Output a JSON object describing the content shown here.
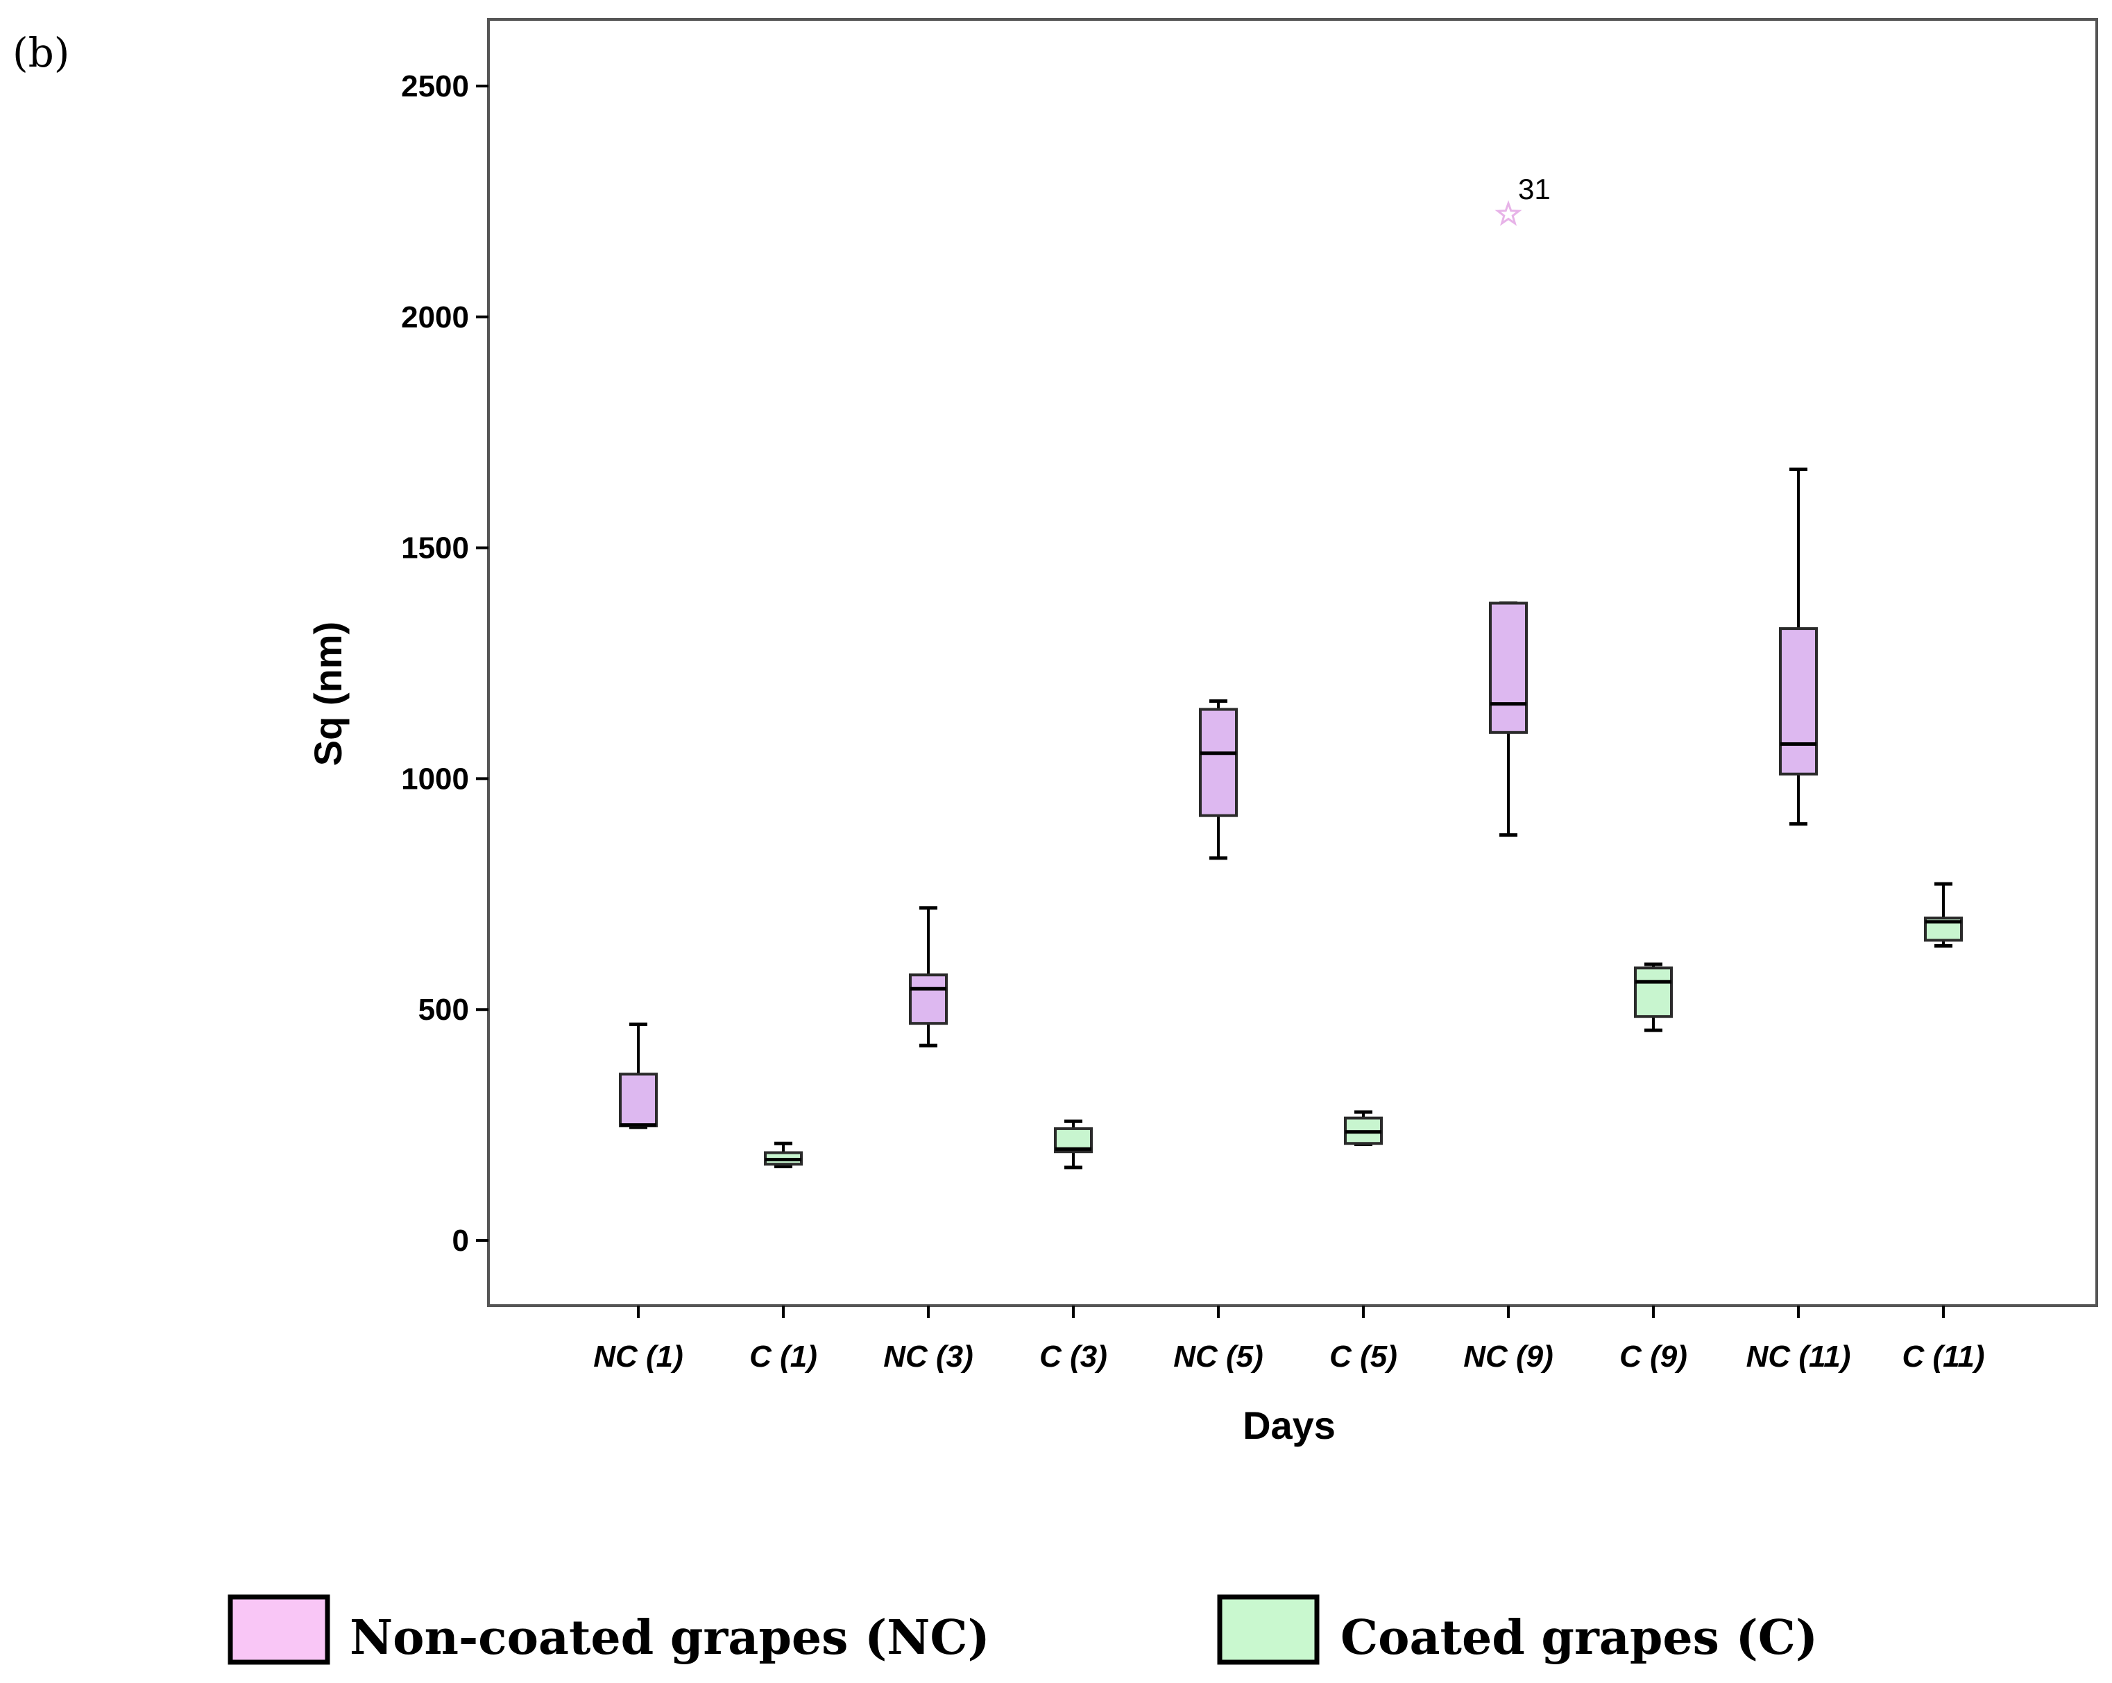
{
  "panel_label": "(b)",
  "chart_data": {
    "type": "box",
    "title": "",
    "xlabel": "Days",
    "ylabel": "Sq (nm)",
    "ylim": [
      -140,
      2640
    ],
    "yticks": [
      0,
      500,
      1000,
      1500,
      2000,
      2500
    ],
    "categories": [
      "NC (1)",
      "C (1)",
      "NC (3)",
      "C (3)",
      "NC (5)",
      "C (5)",
      "NC (9)",
      "C (9)",
      "NC (11)",
      "C (11)"
    ],
    "boxes": [
      {
        "category": "NC (1)",
        "group": "NC",
        "min": 245,
        "q1": 248,
        "median": 250,
        "q3": 360,
        "max": 468
      },
      {
        "category": "C (1)",
        "group": "C",
        "min": 160,
        "q1": 165,
        "median": 175,
        "q3": 190,
        "max": 210
      },
      {
        "category": "NC (3)",
        "group": "NC",
        "min": 422,
        "q1": 470,
        "median": 545,
        "q3": 575,
        "max": 720
      },
      {
        "category": "C (3)",
        "group": "C",
        "min": 158,
        "q1": 192,
        "median": 198,
        "q3": 242,
        "max": 258
      },
      {
        "category": "NC (5)",
        "group": "NC",
        "min": 828,
        "q1": 920,
        "median": 1055,
        "q3": 1150,
        "max": 1168
      },
      {
        "category": "C (5)",
        "group": "C",
        "min": 208,
        "q1": 210,
        "median": 235,
        "q3": 265,
        "max": 278
      },
      {
        "category": "NC (9)",
        "group": "NC",
        "min": 878,
        "q1": 1100,
        "median": 1162,
        "q3": 1380,
        "max": 1380
      },
      {
        "category": "C (9)",
        "group": "C",
        "min": 455,
        "q1": 485,
        "median": 560,
        "q3": 590,
        "max": 598
      },
      {
        "category": "NC (11)",
        "group": "NC",
        "min": 902,
        "q1": 1010,
        "median": 1075,
        "q3": 1325,
        "max": 1670
      },
      {
        "category": "C (11)",
        "group": "C",
        "min": 638,
        "q1": 650,
        "median": 690,
        "q3": 698,
        "max": 772
      }
    ],
    "outliers": [
      {
        "category": "NC (9)",
        "value": 2222,
        "label": "31",
        "marker": "star"
      }
    ],
    "legend": {
      "placement": "bottom",
      "items": [
        {
          "group": "NC",
          "label": "Non-coated grapes (NC)",
          "color": "#DDB8F0",
          "swatch_color": "#F9C6F6"
        },
        {
          "group": "C",
          "label": "Coated grapes (C)",
          "color": "#C8F5CF",
          "swatch_color": "#C9F8CF"
        }
      ]
    },
    "colors": {
      "NC": "#DDB8F0",
      "C": "#C8F5CF",
      "outlier": "#E7B3E8",
      "frame": "#555555",
      "line": "#000000"
    }
  }
}
